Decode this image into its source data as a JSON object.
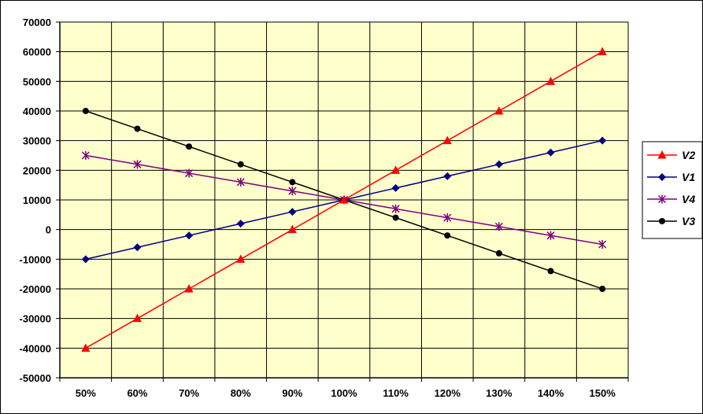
{
  "chart_data": {
    "type": "line",
    "title": "",
    "xlabel": "",
    "ylabel": "",
    "categories": [
      "50%",
      "60%",
      "70%",
      "80%",
      "90%",
      "100%",
      "110%",
      "120%",
      "130%",
      "140%",
      "150%"
    ],
    "ylim": [
      -50000,
      70000
    ],
    "yticks": [
      70000,
      60000,
      50000,
      40000,
      30000,
      20000,
      10000,
      0,
      -10000,
      -20000,
      -30000,
      -40000,
      -50000
    ],
    "grid": true,
    "plot_background": "#ffffcc",
    "legend_position": "right",
    "series": [
      {
        "name": "V2",
        "color": "#ff0000",
        "marker": "triangle",
        "values": [
          -40000,
          -30000,
          -20000,
          -10000,
          0,
          10000,
          20000,
          30000,
          40000,
          50000,
          60000
        ]
      },
      {
        "name": "V1",
        "color": "#000080",
        "marker": "diamond",
        "values": [
          -10000,
          -6000,
          -2000,
          2000,
          6000,
          10000,
          14000,
          18000,
          22000,
          26000,
          30000
        ]
      },
      {
        "name": "V4",
        "color": "#800080",
        "marker": "star",
        "values": [
          25000,
          22000,
          19000,
          16000,
          13000,
          10000,
          7000,
          4000,
          1000,
          -2000,
          -5000
        ]
      },
      {
        "name": "V3",
        "color": "#000000",
        "marker": "circle",
        "values": [
          40000,
          34000,
          28000,
          22000,
          16000,
          10000,
          4000,
          -2000,
          -8000,
          -14000,
          -20000
        ]
      }
    ]
  }
}
